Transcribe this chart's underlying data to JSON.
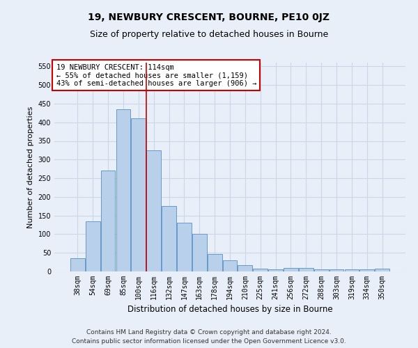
{
  "title": "19, NEWBURY CRESCENT, BOURNE, PE10 0JZ",
  "subtitle": "Size of property relative to detached houses in Bourne",
  "xlabel": "Distribution of detached houses by size in Bourne",
  "ylabel": "Number of detached properties",
  "categories": [
    "38sqm",
    "54sqm",
    "69sqm",
    "85sqm",
    "100sqm",
    "116sqm",
    "132sqm",
    "147sqm",
    "163sqm",
    "178sqm",
    "194sqm",
    "210sqm",
    "225sqm",
    "241sqm",
    "256sqm",
    "272sqm",
    "288sqm",
    "303sqm",
    "319sqm",
    "334sqm",
    "350sqm"
  ],
  "values": [
    35,
    135,
    270,
    435,
    410,
    325,
    175,
    130,
    100,
    47,
    30,
    17,
    8,
    5,
    10,
    10,
    5,
    5,
    5,
    5,
    8
  ],
  "bar_color": "#b8d0ea",
  "bar_edgecolor": "#6699cc",
  "bar_linewidth": 0.7,
  "grid_color": "#c8d8e8",
  "background_color": "#e8eff8",
  "annotation_box_text": "19 NEWBURY CRESCENT: 114sqm\n← 55% of detached houses are smaller (1,159)\n43% of semi-detached houses are larger (906) →",
  "annotation_box_facecolor": "#ffffff",
  "annotation_box_edgecolor": "#cc0000",
  "vline_x": 4.5,
  "vline_color": "#cc0000",
  "ylim": [
    0,
    560
  ],
  "yticks": [
    0,
    50,
    100,
    150,
    200,
    250,
    300,
    350,
    400,
    450,
    500,
    550
  ],
  "footer_line1": "Contains HM Land Registry data © Crown copyright and database right 2024.",
  "footer_line2": "Contains public sector information licensed under the Open Government Licence v3.0.",
  "title_fontsize": 10,
  "subtitle_fontsize": 9,
  "xlabel_fontsize": 8.5,
  "ylabel_fontsize": 8,
  "tick_fontsize": 7,
  "annotation_fontsize": 7.5,
  "footer_fontsize": 6.5
}
